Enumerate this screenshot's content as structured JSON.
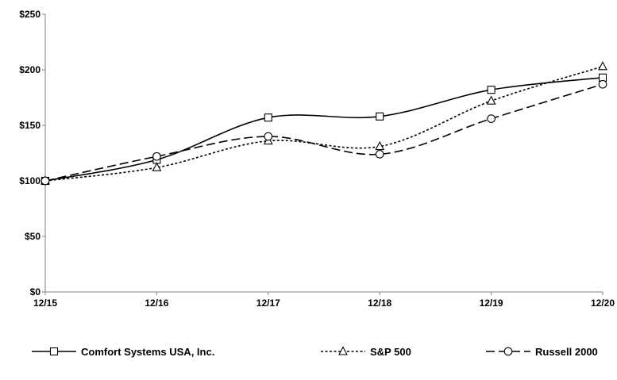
{
  "chart_data": {
    "type": "line",
    "title": "",
    "xlabel": "",
    "ylabel": "",
    "categories": [
      "12/15",
      "12/16",
      "12/17",
      "12/18",
      "12/19",
      "12/20"
    ],
    "y_ticks": [
      "$0",
      "$50",
      "$100",
      "$150",
      "$200",
      "$250"
    ],
    "ylim": [
      0,
      250
    ],
    "grid": false,
    "legend_position": "bottom",
    "series": [
      {
        "name": "Comfort Systems USA, Inc.",
        "values": [
          100,
          119,
          157,
          158,
          182,
          193
        ],
        "marker": "square",
        "dash": "solid",
        "color": "#000000"
      },
      {
        "name": "S&P 500",
        "values": [
          100,
          112,
          136,
          131,
          172,
          203
        ],
        "marker": "triangle",
        "dash": "dotted",
        "color": "#000000"
      },
      {
        "name": "Russell 2000",
        "values": [
          100,
          122,
          140,
          124,
          156,
          187
        ],
        "marker": "circle",
        "dash": "dashed",
        "color": "#000000"
      }
    ]
  }
}
